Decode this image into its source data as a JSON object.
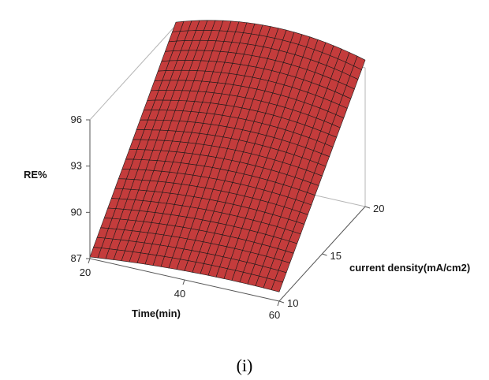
{
  "caption": "(i)",
  "colors": {
    "surface_fill": "#c43c3c",
    "mesh": "#1a1a1a",
    "box": "#b5b5b5",
    "axis": "#555555"
  },
  "chart_data": {
    "type": "surface",
    "title": "",
    "zlabel": "RE%",
    "xlabel": "Time(min)",
    "ylabel": "current density(mA/cm2)",
    "x_ticks": [
      20,
      40,
      60
    ],
    "y_ticks": [
      10,
      15,
      20
    ],
    "z_ticks": [
      87,
      90,
      93,
      96
    ],
    "x_range": [
      20,
      60
    ],
    "y_range": [
      10,
      20
    ],
    "z_range": [
      87,
      96
    ],
    "mesh_lines": 24,
    "corner_values": [
      {
        "time": 20,
        "current_density": 10,
        "re": 87.1
      },
      {
        "time": 60,
        "current_density": 10,
        "re": 87.6
      },
      {
        "time": 20,
        "current_density": 20,
        "re": 96.2
      },
      {
        "time": 60,
        "current_density": 20,
        "re": 96.5
      }
    ],
    "peak": {
      "time": 40,
      "current_density": 20,
      "re": 97.3
    }
  }
}
